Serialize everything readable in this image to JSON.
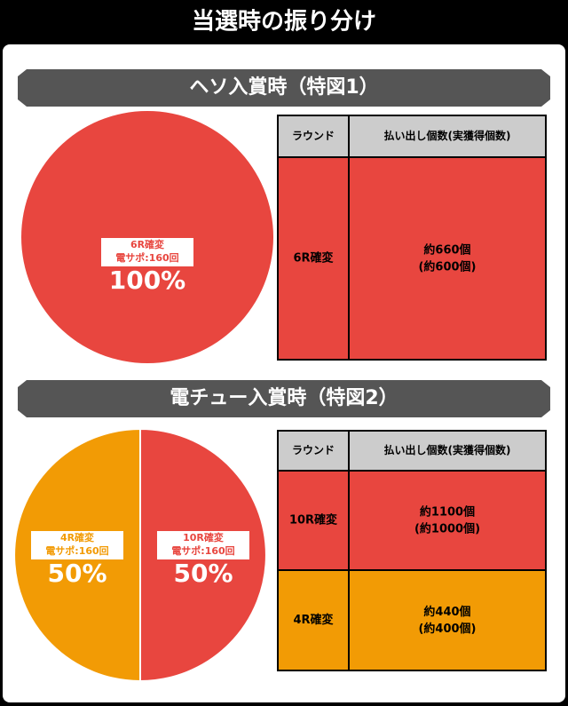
{
  "header": {
    "title": "当選時の振り分け"
  },
  "chart_data": [
    {
      "type": "pie",
      "title": "ヘソ入賞時（特図1）",
      "categories": [
        "6R確変"
      ],
      "sublabels": [
        "電サポ:160回"
      ],
      "values": [
        100
      ],
      "value_labels": [
        "100%"
      ],
      "colors": [
        "#e8463f"
      ]
    },
    {
      "type": "pie",
      "title": "電チュー入賞時（特図2）",
      "categories": [
        "10R確変",
        "4R確変"
      ],
      "sublabels": [
        "電サポ:160回",
        "電サポ:160回"
      ],
      "values": [
        50,
        50
      ],
      "value_labels": [
        "50%",
        "50%"
      ],
      "colors": [
        "#e8463f",
        "#f29b05"
      ]
    }
  ],
  "tables": [
    {
      "header": [
        "ラウンド",
        "払い出し個数(実獲得個数)"
      ],
      "rows": [
        [
          "6R確変",
          "約660個",
          "(約600個)"
        ]
      ]
    },
    {
      "header": [
        "ラウンド",
        "払い出し個数(実獲得個数)"
      ],
      "rows": [
        [
          "10R確変",
          "約1100個",
          "(約1000個)"
        ],
        [
          "4R確変",
          "約440個",
          "(約400個)"
        ]
      ]
    }
  ]
}
